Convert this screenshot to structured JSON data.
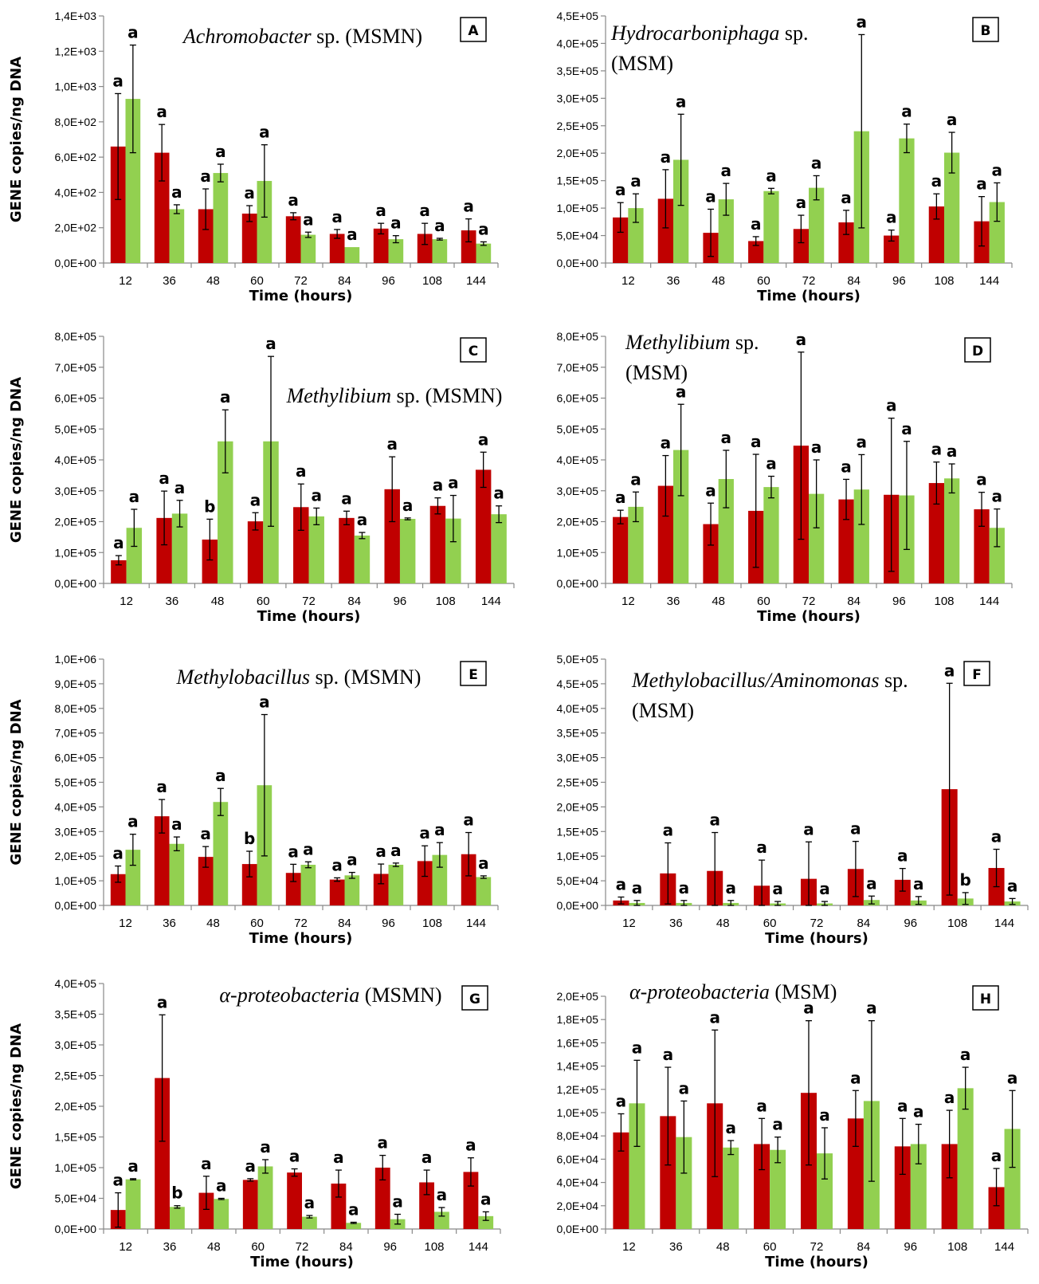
{
  "colors": {
    "MSMN_like_red": "#c00000",
    "green": "#92d050"
  },
  "chart_data": [
    {
      "type": "bar",
      "panel": "A",
      "title_italic": "Achromobacter",
      "title_rest": " sp. (MSMN)",
      "xlabel": "Time (hours)",
      "ylabel": "GENE copies/ng DNA",
      "categories": [
        "12",
        "36",
        "48",
        "60",
        "72",
        "84",
        "96",
        "108",
        "144"
      ],
      "ylim": [
        0,
        1400
      ],
      "yticks": [
        0,
        200,
        400,
        600,
        800,
        1000,
        1200,
        1400
      ],
      "ytick_labels": [
        "0,0E+00",
        "2,0E+02",
        "4,0E+02",
        "6,0E+02",
        "8,0E+02",
        "1,0E+03",
        "1,2E+03",
        "1,4E+03"
      ],
      "series": [
        {
          "color": "#c00000",
          "values": [
            660,
            625,
            305,
            280,
            265,
            165,
            195,
            165,
            185
          ],
          "err": [
            300,
            160,
            115,
            45,
            20,
            25,
            30,
            60,
            65
          ],
          "letters": [
            "a",
            "a",
            "a",
            "a",
            "a",
            "a",
            "a",
            "a",
            "a"
          ]
        },
        {
          "color": "#92d050",
          "values": [
            930,
            305,
            510,
            465,
            160,
            90,
            135,
            135,
            110
          ],
          "err": [
            305,
            25,
            50,
            205,
            15,
            0,
            20,
            5,
            10
          ],
          "letters": [
            "a",
            "a",
            "a",
            "a",
            "a",
            "a",
            "a",
            "a",
            "a"
          ]
        }
      ]
    },
    {
      "type": "bar",
      "panel": "B",
      "title_italic": "Hydrocarboniphaga",
      "title_rest": " sp.",
      "title_line2": "(MSM)",
      "xlabel": "Time (hours)",
      "ylabel": "",
      "categories": [
        "12",
        "36",
        "48",
        "60",
        "72",
        "84",
        "96",
        "108",
        "144"
      ],
      "ylim": [
        0,
        450000
      ],
      "yticks": [
        0,
        50000,
        100000,
        150000,
        200000,
        250000,
        300000,
        350000,
        400000,
        450000
      ],
      "ytick_labels": [
        "0,0E+00",
        "5,0E+04",
        "1,0E+05",
        "1,5E+05",
        "2,0E+05",
        "2,5E+05",
        "3,0E+05",
        "3,5E+05",
        "4,0E+05",
        "4,5E+05"
      ],
      "series": [
        {
          "color": "#c00000",
          "values": [
            83000,
            117000,
            55000,
            40000,
            62000,
            74000,
            50000,
            103000,
            76000
          ],
          "err": [
            27000,
            53000,
            43000,
            8000,
            25000,
            22000,
            10000,
            23000,
            45000
          ],
          "letters": [
            "a",
            "a",
            "a",
            "a",
            "a",
            "a",
            "a",
            "a",
            "a"
          ]
        },
        {
          "color": "#92d050",
          "values": [
            100000,
            188000,
            116000,
            131000,
            137000,
            240000,
            227000,
            201000,
            111000
          ],
          "err": [
            26000,
            83000,
            29000,
            5000,
            22000,
            176000,
            26000,
            37000,
            35000
          ],
          "letters": [
            "a",
            "a",
            "a",
            "a",
            "a",
            "a",
            "a",
            "a",
            "a"
          ]
        }
      ]
    },
    {
      "type": "bar",
      "panel": "C",
      "title_italic": "Methylibium",
      "title_rest": " sp. (MSMN)",
      "xlabel": "Time (hours)",
      "ylabel": "GENE copies/ng DNA",
      "categories": [
        "12",
        "36",
        "48",
        "60",
        "72",
        "84",
        "96",
        "108",
        "144"
      ],
      "ylim": [
        0,
        800000
      ],
      "yticks": [
        0,
        100000,
        200000,
        300000,
        400000,
        500000,
        600000,
        700000,
        800000
      ],
      "ytick_labels": [
        "0,0E+00",
        "1,0E+05",
        "2,0E+05",
        "3,0E+05",
        "4,0E+05",
        "5,0E+05",
        "6,0E+05",
        "7,0E+05",
        "8,0E+05"
      ],
      "series": [
        {
          "color": "#c00000",
          "values": [
            75000,
            212000,
            142000,
            201000,
            247000,
            212000,
            305000,
            251000,
            368000
          ],
          "err": [
            15000,
            87000,
            66000,
            28000,
            75000,
            22000,
            105000,
            26000,
            57000
          ],
          "letters": [
            "a",
            "a",
            "b",
            "a",
            "a",
            "a",
            "a",
            "a",
            "a"
          ]
        },
        {
          "color": "#92d050",
          "values": [
            180000,
            226000,
            460000,
            460000,
            217000,
            155000,
            209000,
            210000,
            224000
          ],
          "err": [
            60000,
            43000,
            102000,
            275000,
            27000,
            10000,
            3000,
            75000,
            27000
          ],
          "letters": [
            "a",
            "a",
            "a",
            "a",
            "a",
            "a",
            "a",
            "a",
            "a"
          ]
        }
      ]
    },
    {
      "type": "bar",
      "panel": "D",
      "title_italic": "Methylibium",
      "title_rest": " sp.",
      "title_line2": "(MSM)",
      "xlabel": "Time (hours)",
      "ylabel": "",
      "categories": [
        "12",
        "36",
        "48",
        "60",
        "72",
        "84",
        "96",
        "108",
        "144"
      ],
      "ylim": [
        0,
        800000
      ],
      "yticks": [
        0,
        100000,
        200000,
        300000,
        400000,
        500000,
        600000,
        700000,
        800000
      ],
      "ytick_labels": [
        "0,0E+00",
        "1,0E+05",
        "2,0E+05",
        "3,0E+05",
        "4,0E+05",
        "5,0E+05",
        "6,0E+05",
        "7,0E+05",
        "8,0E+05"
      ],
      "series": [
        {
          "color": "#c00000",
          "values": [
            215000,
            316000,
            192000,
            235000,
            446000,
            272000,
            287000,
            325000,
            240000
          ],
          "err": [
            22000,
            98000,
            68000,
            183000,
            303000,
            65000,
            248000,
            68000,
            55000
          ],
          "letters": [
            "a",
            "a",
            "a",
            "a",
            "a",
            "a",
            "a",
            "a",
            "a"
          ]
        },
        {
          "color": "#92d050",
          "values": [
            248000,
            432000,
            338000,
            312000,
            290000,
            304000,
            285000,
            340000,
            180000
          ],
          "err": [
            48000,
            148000,
            93000,
            35000,
            110000,
            113000,
            175000,
            47000,
            61000
          ],
          "letters": [
            "a",
            "a",
            "a",
            "a",
            "a",
            "a",
            "a",
            "a",
            "a"
          ]
        }
      ]
    },
    {
      "type": "bar",
      "panel": "E",
      "title_italic": "Methylobacillus",
      "title_rest": " sp. (MSMN)",
      "xlabel": "Time (hours)",
      "ylabel": "GENE copies/ng DNA",
      "categories": [
        "12",
        "36",
        "48",
        "60",
        "72",
        "84",
        "96",
        "108",
        "144"
      ],
      "ylim": [
        0,
        1000000
      ],
      "yticks": [
        0,
        100000,
        200000,
        300000,
        400000,
        500000,
        600000,
        700000,
        800000,
        900000,
        1000000
      ],
      "ytick_labels": [
        "0,0E+00",
        "1,0E+05",
        "2,0E+05",
        "3,0E+05",
        "4,0E+05",
        "5,0E+05",
        "6,0E+05",
        "7,0E+05",
        "8,0E+05",
        "9,0E+05",
        "1,0E+06"
      ],
      "series": [
        {
          "color": "#c00000",
          "values": [
            127000,
            362000,
            197000,
            168000,
            132000,
            105000,
            128000,
            180000,
            208000
          ],
          "err": [
            33000,
            68000,
            42000,
            52000,
            35000,
            7000,
            40000,
            62000,
            88000
          ],
          "letters": [
            "a",
            "a",
            "a",
            "b",
            "a",
            "a",
            "a",
            "a",
            "a"
          ]
        },
        {
          "color": "#92d050",
          "values": [
            226000,
            250000,
            420000,
            488000,
            165000,
            122000,
            165000,
            205000,
            115000
          ],
          "err": [
            63000,
            28000,
            55000,
            287000,
            12000,
            12000,
            7000,
            50000,
            5000
          ],
          "letters": [
            "a",
            "a",
            "a",
            "a",
            "a",
            "a",
            "a",
            "a",
            "a"
          ]
        }
      ]
    },
    {
      "type": "bar",
      "panel": "F",
      "title_italic": "Methylobacillus/Aminomonas",
      "title_rest": " sp.",
      "title_line2": "(MSM)",
      "xlabel": "Time (hours)",
      "ylabel": "",
      "categories": [
        "12",
        "36",
        "48",
        "60",
        "72",
        "84",
        "96",
        "108",
        "144"
      ],
      "ylim": [
        0,
        500000
      ],
      "yticks": [
        0,
        50000,
        100000,
        150000,
        200000,
        250000,
        300000,
        350000,
        400000,
        450000,
        500000
      ],
      "ytick_labels": [
        "0,0E+00",
        "5,0E+04",
        "1,0E+05",
        "1,5E+05",
        "2,0E+05",
        "2,5E+05",
        "3,0E+05",
        "3,5E+05",
        "4,0E+05",
        "4,5E+05",
        "5,0E+05"
      ],
      "series": [
        {
          "color": "#c00000",
          "values": [
            10000,
            65000,
            70000,
            40000,
            54000,
            74000,
            52000,
            236000,
            76000
          ],
          "err": [
            7000,
            62000,
            78000,
            52000,
            75000,
            56000,
            23000,
            215000,
            38000
          ],
          "letters": [
            "a",
            "a",
            "a",
            "a",
            "a",
            "a",
            "a",
            "a",
            "a"
          ]
        },
        {
          "color": "#92d050",
          "values": [
            5000,
            5000,
            5000,
            4000,
            4000,
            11000,
            10000,
            14000,
            8000
          ],
          "err": [
            5000,
            5000,
            5000,
            4000,
            4000,
            8000,
            8000,
            12000,
            6000
          ],
          "letters": [
            "a",
            "a",
            "a",
            "a",
            "a",
            "a",
            "a",
            "b",
            "a"
          ]
        }
      ]
    },
    {
      "type": "bar",
      "panel": "G",
      "title_italic": "α-proteobacteria",
      "title_rest": " (MSMN)",
      "xlabel": "Time (hours)",
      "ylabel": "GENE copies/ng DNA",
      "categories": [
        "12",
        "36",
        "48",
        "60",
        "72",
        "84",
        "96",
        "108",
        "144"
      ],
      "ylim": [
        0,
        400000
      ],
      "yticks": [
        0,
        50000,
        100000,
        150000,
        200000,
        250000,
        300000,
        350000,
        400000
      ],
      "ytick_labels": [
        "0,0E+00",
        "5,0E+04",
        "1,0E+05",
        "1,5E+05",
        "2,0E+05",
        "2,5E+05",
        "3,0E+05",
        "3,5E+05",
        "4,0E+05"
      ],
      "series": [
        {
          "color": "#c00000",
          "values": [
            31000,
            246000,
            59000,
            80000,
            92000,
            74000,
            100000,
            76000,
            93000
          ],
          "err": [
            28000,
            103000,
            27000,
            2000,
            6000,
            22000,
            20000,
            20000,
            23000
          ],
          "letters": [
            "a",
            "a",
            "a",
            "a",
            "a",
            "a",
            "a",
            "a",
            "a"
          ]
        },
        {
          "color": "#92d050",
          "values": [
            81000,
            36000,
            49000,
            102000,
            20000,
            10000,
            16000,
            28000,
            21000
          ],
          "err": [
            1000,
            2000,
            1000,
            11000,
            2000,
            1000,
            8000,
            7000,
            7000
          ],
          "letters": [
            "a",
            "b",
            "a",
            "a",
            "a",
            "a",
            "a",
            "a",
            "a"
          ]
        }
      ]
    },
    {
      "type": "bar",
      "panel": "H",
      "title_italic": "α-proteobacteria",
      "title_rest": " (MSM)",
      "xlabel": "Time (hours)",
      "ylabel": "",
      "categories": [
        "12",
        "36",
        "48",
        "60",
        "72",
        "84",
        "96",
        "108",
        "144"
      ],
      "ylim": [
        0,
        200000
      ],
      "yticks": [
        0,
        20000,
        40000,
        60000,
        80000,
        100000,
        120000,
        140000,
        160000,
        180000,
        200000
      ],
      "ytick_labels": [
        "0,0E+00",
        "2,0E+04",
        "4,0E+04",
        "6,0E+04",
        "8,0E+04",
        "1,0E+05",
        "1,2E+05",
        "1,4E+05",
        "1,6E+05",
        "1,8E+05",
        "2,0E+05"
      ],
      "series": [
        {
          "color": "#c00000",
          "values": [
            83000,
            97000,
            108000,
            73000,
            117000,
            95000,
            71000,
            73000,
            36000
          ],
          "err": [
            16000,
            42000,
            63000,
            22000,
            62000,
            24000,
            24000,
            29000,
            16000
          ],
          "letters": [
            "a",
            "a",
            "a",
            "a",
            "a",
            "a",
            "a",
            "a",
            "a"
          ]
        },
        {
          "color": "#92d050",
          "values": [
            108000,
            79000,
            70000,
            68000,
            65000,
            110000,
            73000,
            121000,
            86000
          ],
          "err": [
            37000,
            31000,
            6000,
            11000,
            22000,
            69000,
            17000,
            18000,
            33000
          ],
          "letters": [
            "a",
            "a",
            "a",
            "a",
            "a",
            "a",
            "a",
            "a",
            "a"
          ]
        }
      ]
    }
  ]
}
